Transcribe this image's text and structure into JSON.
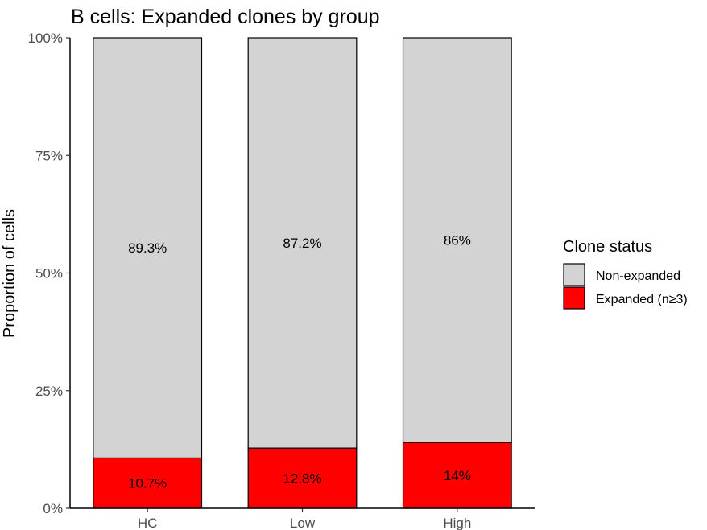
{
  "chart_data": {
    "type": "bar",
    "stacked": true,
    "title": "B cells: Expanded clones by group",
    "xlabel": "",
    "ylabel": "Proportion of cells",
    "ylim": [
      0,
      1
    ],
    "yticks": [
      {
        "value": 0,
        "label": "0%"
      },
      {
        "value": 0.25,
        "label": "25%"
      },
      {
        "value": 0.5,
        "label": "50%"
      },
      {
        "value": 0.75,
        "label": "75%"
      },
      {
        "value": 1,
        "label": "100%"
      }
    ],
    "categories": [
      "HC",
      "Low",
      "High"
    ],
    "series": [
      {
        "name": "Expanded (n≥3)",
        "color": "#ff0000",
        "values": [
          0.107,
          0.128,
          0.14
        ],
        "labels": [
          "10.7%",
          "12.8%",
          "14%"
        ]
      },
      {
        "name": "Non-expanded",
        "color": "#d3d3d3",
        "values": [
          0.893,
          0.872,
          0.86
        ],
        "labels": [
          "89.3%",
          "87.2%",
          "86%"
        ]
      }
    ],
    "legend": {
      "title": "Clone status",
      "position": "right",
      "entries": [
        {
          "label": "Non-expanded",
          "color": "#d3d3d3"
        },
        {
          "label": "Expanded (n≥3)",
          "color": "#ff0000"
        }
      ]
    },
    "grid": false
  }
}
